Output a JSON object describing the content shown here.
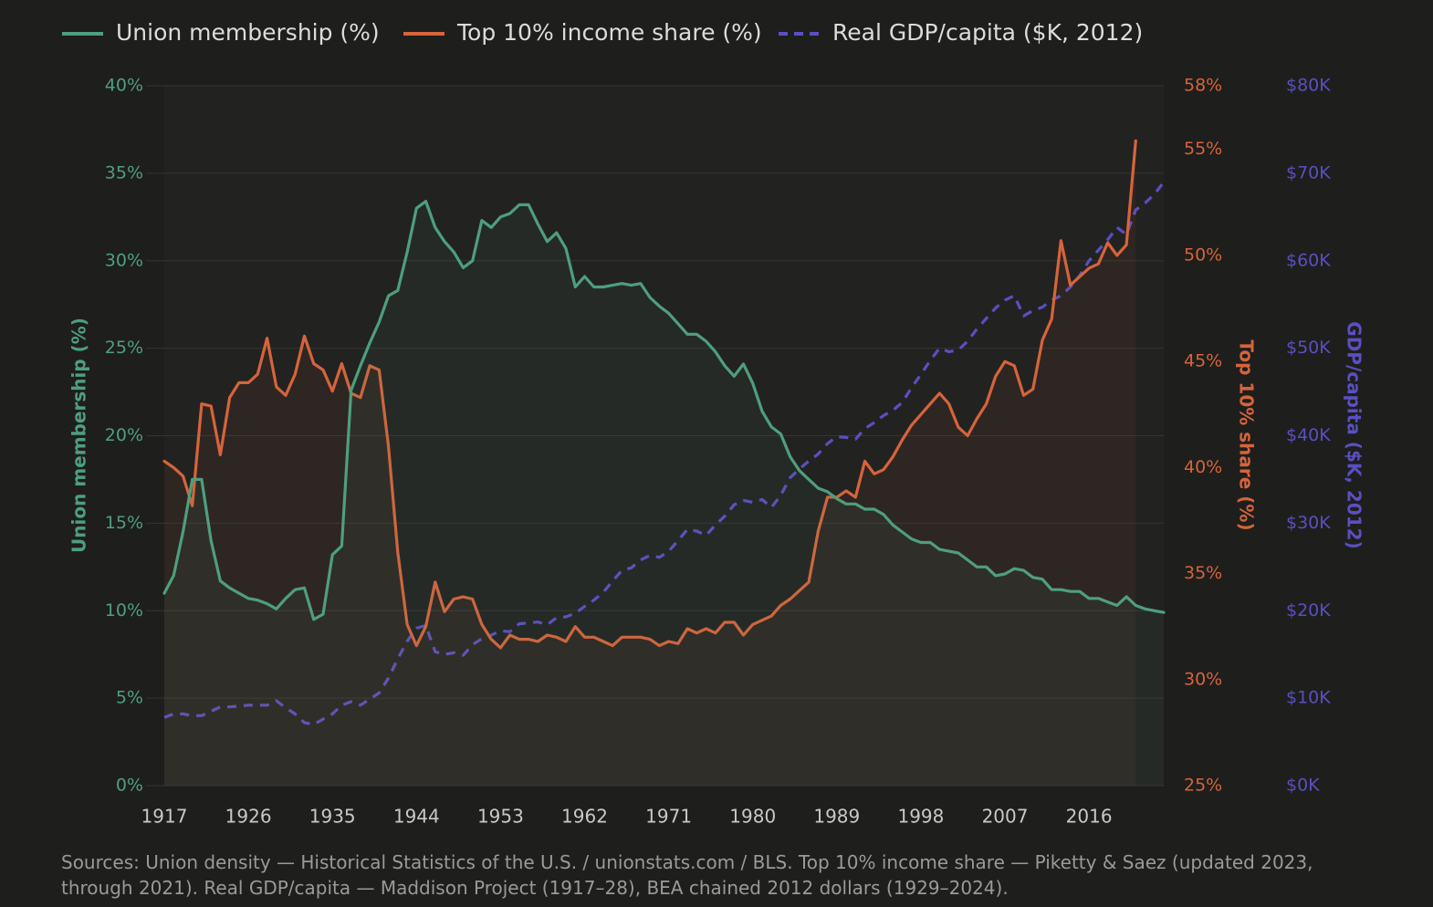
{
  "chart_data": {
    "type": "line",
    "legend_position": "top-left",
    "grid": true,
    "x": [
      1917,
      1918,
      1919,
      1920,
      1921,
      1922,
      1923,
      1924,
      1925,
      1926,
      1927,
      1928,
      1929,
      1930,
      1931,
      1932,
      1933,
      1934,
      1935,
      1936,
      1937,
      1938,
      1939,
      1940,
      1941,
      1942,
      1943,
      1944,
      1945,
      1946,
      1947,
      1948,
      1949,
      1950,
      1951,
      1952,
      1953,
      1954,
      1955,
      1956,
      1957,
      1958,
      1959,
      1960,
      1961,
      1962,
      1963,
      1964,
      1965,
      1966,
      1967,
      1968,
      1969,
      1970,
      1971,
      1972,
      1973,
      1974,
      1975,
      1976,
      1977,
      1978,
      1979,
      1980,
      1981,
      1982,
      1983,
      1984,
      1985,
      1986,
      1987,
      1988,
      1989,
      1990,
      1991,
      1992,
      1993,
      1994,
      1995,
      1996,
      1997,
      1998,
      1999,
      2000,
      2001,
      2002,
      2003,
      2004,
      2005,
      2006,
      2007,
      2008,
      2009,
      2010,
      2011,
      2012,
      2013,
      2014,
      2015,
      2016,
      2017,
      2018,
      2019,
      2020,
      2021,
      2022,
      2023,
      2024
    ],
    "xlim": [
      1917,
      2024
    ],
    "xticks": [
      1917,
      1926,
      1935,
      1944,
      1953,
      1962,
      1971,
      1980,
      1989,
      1998,
      2007,
      2016
    ],
    "ylabel": "Union membership (%)",
    "ylim": [
      0,
      40
    ],
    "yticks": [
      {
        "value": 0,
        "label": "0%"
      },
      {
        "value": 5,
        "label": "5%"
      },
      {
        "value": 10,
        "label": "10%"
      },
      {
        "value": 15,
        "label": "15%"
      },
      {
        "value": 20,
        "label": "20%"
      },
      {
        "value": 25,
        "label": "25%"
      },
      {
        "value": 30,
        "label": "30%"
      },
      {
        "value": 35,
        "label": "35%"
      },
      {
        "value": 40,
        "label": "40%"
      }
    ],
    "y2label": "Top 10% share (%)",
    "y2lim": [
      25,
      58
    ],
    "y2ticks": [
      {
        "value": 25,
        "label": "25%"
      },
      {
        "value": 30,
        "label": "30%"
      },
      {
        "value": 35,
        "label": "35%"
      },
      {
        "value": 40,
        "label": "40%"
      },
      {
        "value": 45,
        "label": "45%"
      },
      {
        "value": 50,
        "label": "50%"
      },
      {
        "value": 55,
        "label": "55%"
      },
      {
        "value": 58,
        "label": "58%"
      }
    ],
    "y3label": "GDP/capita ($K, 2012)",
    "y3lim": [
      0,
      80
    ],
    "y3ticks": [
      {
        "value": 0,
        "label": "$0K"
      },
      {
        "value": 10,
        "label": "$10K"
      },
      {
        "value": 20,
        "label": "$20K"
      },
      {
        "value": 30,
        "label": "$30K"
      },
      {
        "value": 40,
        "label": "$40K"
      },
      {
        "value": 50,
        "label": "$50K"
      },
      {
        "value": 60,
        "label": "$60K"
      },
      {
        "value": 70,
        "label": "$70K"
      },
      {
        "value": 80,
        "label": "$80K"
      }
    ],
    "series": [
      {
        "name": "Union membership (%)",
        "color": "#4e9f7d",
        "axis": "y",
        "fill": true,
        "dash": false,
        "values": [
          11.0,
          12.0,
          14.5,
          17.5,
          17.5,
          14.0,
          11.7,
          11.3,
          11.0,
          10.7,
          10.6,
          10.4,
          10.1,
          10.7,
          11.2,
          11.3,
          9.5,
          9.8,
          13.2,
          13.7,
          22.6,
          24.0,
          25.3,
          26.5,
          28.0,
          28.3,
          30.5,
          33.0,
          33.4,
          31.9,
          31.1,
          30.5,
          29.6,
          30.0,
          32.3,
          31.9,
          32.5,
          32.7,
          33.2,
          33.2,
          32.1,
          31.1,
          31.6,
          30.7,
          28.5,
          29.1,
          28.5,
          28.5,
          28.6,
          28.7,
          28.6,
          28.7,
          27.9,
          27.4,
          27.0,
          26.4,
          25.8,
          25.8,
          25.4,
          24.8,
          24.0,
          23.4,
          24.1,
          23.0,
          21.4,
          20.5,
          20.1,
          18.8,
          18.0,
          17.5,
          17.0,
          16.8,
          16.4,
          16.1,
          16.1,
          15.8,
          15.8,
          15.5,
          14.9,
          14.5,
          14.1,
          13.9,
          13.9,
          13.5,
          13.4,
          13.3,
          12.9,
          12.5,
          12.5,
          12.0,
          12.1,
          12.4,
          12.3,
          11.9,
          11.8,
          11.2,
          11.2,
          11.1,
          11.1,
          10.7,
          10.7,
          10.5,
          10.3,
          10.8,
          10.3,
          10.1,
          10.0,
          9.9
        ]
      },
      {
        "name": "Top 10% income share (%)",
        "color": "#d6643b",
        "axis": "y2",
        "fill": true,
        "dash": false,
        "values": [
          40.3,
          40.0,
          39.6,
          38.2,
          43.0,
          42.9,
          40.6,
          43.3,
          44.0,
          44.0,
          44.4,
          46.1,
          43.8,
          43.4,
          44.4,
          46.2,
          44.9,
          44.6,
          43.6,
          44.9,
          43.5,
          43.3,
          44.8,
          44.6,
          41.0,
          36.0,
          32.6,
          31.6,
          32.5,
          34.6,
          33.2,
          33.8,
          33.9,
          33.8,
          32.6,
          31.9,
          31.5,
          32.1,
          31.9,
          31.9,
          31.8,
          32.1,
          32.0,
          31.8,
          32.5,
          32.0,
          32.0,
          31.8,
          31.6,
          32.0,
          32.0,
          32.0,
          31.9,
          31.6,
          31.8,
          31.7,
          32.4,
          32.2,
          32.4,
          32.2,
          32.7,
          32.7,
          32.1,
          32.6,
          32.8,
          33.0,
          33.5,
          33.8,
          34.2,
          34.6,
          37.0,
          38.6,
          38.6,
          38.9,
          38.6,
          40.3,
          39.7,
          39.9,
          40.5,
          41.3,
          42.0,
          42.5,
          43.0,
          43.5,
          43.0,
          41.9,
          41.5,
          42.3,
          43.0,
          44.3,
          45.0,
          44.8,
          43.4,
          43.7,
          46.0,
          47.0,
          50.7,
          48.6,
          49.0,
          49.4,
          49.6,
          50.6,
          50.0,
          50.5,
          55.4,
          null,
          null,
          null
        ]
      },
      {
        "name": "Real GDP/capita ($K, 2012)",
        "color": "#5a4fc2",
        "axis": "y3",
        "fill": false,
        "dash": true,
        "values": [
          7.8,
          8.2,
          8.2,
          8.0,
          8.0,
          8.5,
          9.0,
          9.0,
          9.1,
          9.2,
          9.2,
          9.2,
          9.7,
          8.9,
          8.2,
          7.2,
          7.0,
          7.6,
          8.2,
          9.2,
          9.6,
          9.2,
          9.9,
          10.6,
          12.3,
          14.5,
          16.5,
          18.0,
          18.3,
          15.3,
          15.0,
          15.2,
          14.9,
          16.1,
          16.8,
          17.2,
          17.7,
          17.6,
          18.5,
          18.6,
          18.7,
          18.4,
          19.2,
          19.3,
          19.7,
          20.5,
          21.2,
          22.1,
          23.4,
          24.6,
          24.9,
          25.8,
          26.3,
          26.1,
          26.8,
          28.0,
          29.3,
          29.1,
          28.6,
          29.8,
          30.8,
          32.1,
          32.6,
          32.4,
          32.7,
          31.8,
          33.2,
          35.2,
          36.2,
          37.1,
          37.9,
          39.1,
          39.9,
          39.8,
          39.6,
          40.8,
          41.5,
          42.3,
          42.9,
          43.8,
          45.5,
          47.0,
          48.6,
          50.0,
          49.6,
          49.8,
          50.8,
          52.2,
          53.4,
          54.6,
          55.5,
          56.0,
          53.7,
          54.3,
          54.7,
          55.5,
          56.0,
          57.0,
          58.3,
          60.0,
          61.2,
          62.4,
          63.8,
          63.0,
          65.8,
          66.6,
          67.6,
          69.0
        ]
      }
    ],
    "source": [
      "Sources: Union density — Historical Statistics of the U.S. / unionstats.com / BLS. Top 10% income share — Piketty & Saez (updated 2023,",
      "through 2021). Real GDP/capita — Maddison Project (1917–28), BEA chained 2012 dollars (1929–2024)."
    ]
  }
}
